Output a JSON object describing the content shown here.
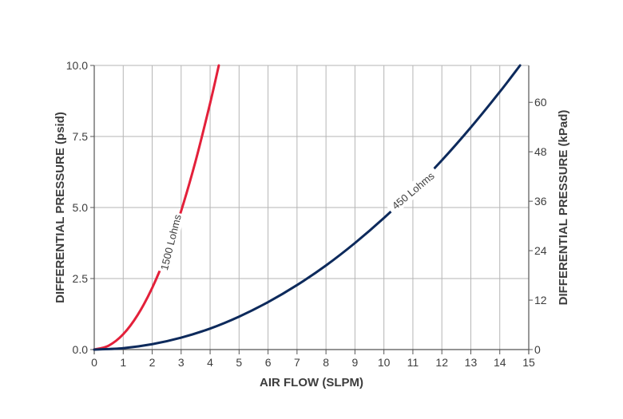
{
  "chart_data": {
    "type": "line",
    "title": "",
    "xlabel": "AIR FLOW (SLPM)",
    "ylabel": "DIFFERENTIAL PRESSURE (psid)",
    "y2label": "DIFFERENTIAL PRESSURE (kPad)",
    "xlim": [
      0,
      15
    ],
    "ylim": [
      0,
      10
    ],
    "y2lim": [
      0,
      68.95
    ],
    "xticks": [
      "0",
      "1",
      "2",
      "3",
      "4",
      "5",
      "6",
      "7",
      "8",
      "9",
      "10",
      "11",
      "12",
      "13",
      "14",
      "15"
    ],
    "yticks": [
      "0.0",
      "2.5",
      "5.0",
      "7.5",
      "10.0"
    ],
    "y2ticks": [
      "0",
      "12",
      "24",
      "36",
      "48",
      "60"
    ],
    "grid": true,
    "series": [
      {
        "name": "1500 Lohms",
        "color": "#e3203a",
        "x": [
          0,
          0.5,
          1,
          1.5,
          2,
          2.5,
          3,
          3.5,
          4,
          4.3
        ],
        "y": [
          0,
          0.14,
          0.54,
          1.22,
          2.17,
          3.39,
          4.88,
          6.64,
          8.67,
          10.0
        ]
      },
      {
        "name": "450 Lohms",
        "color": "#0d2a5c",
        "x": [
          0,
          1,
          2,
          3,
          4,
          5,
          6,
          7,
          8,
          9,
          10,
          11,
          12,
          13,
          14,
          14.7
        ],
        "y": [
          0,
          0.05,
          0.19,
          0.42,
          0.74,
          1.16,
          1.67,
          2.27,
          2.96,
          3.75,
          4.63,
          5.6,
          6.66,
          7.82,
          9.07,
          10.0
        ]
      }
    ]
  }
}
